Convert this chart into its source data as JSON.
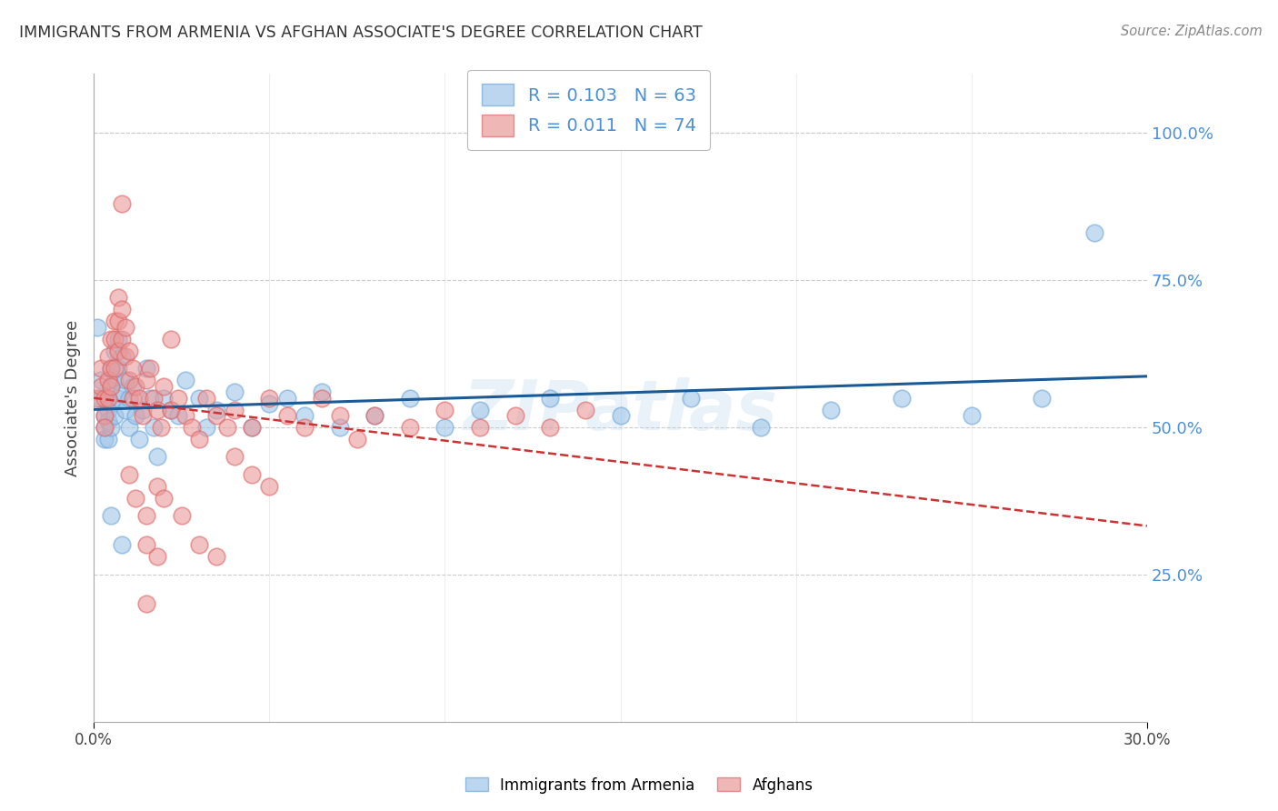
{
  "title": "IMMIGRANTS FROM ARMENIA VS AFGHAN ASSOCIATE'S DEGREE CORRELATION CHART",
  "source": "Source: ZipAtlas.com",
  "ylabel": "Associate's Degree",
  "ytick_labels": [
    "100.0%",
    "75.0%",
    "50.0%",
    "25.0%"
  ],
  "ytick_values": [
    1.0,
    0.75,
    0.5,
    0.25
  ],
  "xlim": [
    0.0,
    0.3
  ],
  "ylim": [
    0.0,
    1.1
  ],
  "blue_color": "#9fc5e8",
  "pink_color": "#ea9999",
  "blue_edge": "#6fa8dc",
  "pink_edge": "#e06666",
  "trend_blue": "#1a5a96",
  "trend_pink": "#cc3333",
  "watermark": "ZIPatlas",
  "background_color": "#ffffff",
  "grid_color": "#cccccc",
  "blue_scatter_x": [
    0.001,
    0.002,
    0.002,
    0.003,
    0.003,
    0.003,
    0.004,
    0.004,
    0.004,
    0.004,
    0.005,
    0.005,
    0.005,
    0.005,
    0.006,
    0.006,
    0.006,
    0.007,
    0.007,
    0.007,
    0.008,
    0.008,
    0.009,
    0.009,
    0.01,
    0.01,
    0.011,
    0.012,
    0.013,
    0.014,
    0.015,
    0.016,
    0.017,
    0.018,
    0.02,
    0.022,
    0.024,
    0.026,
    0.03,
    0.032,
    0.035,
    0.04,
    0.045,
    0.05,
    0.055,
    0.06,
    0.065,
    0.07,
    0.08,
    0.09,
    0.1,
    0.11,
    0.13,
    0.15,
    0.17,
    0.19,
    0.21,
    0.23,
    0.25,
    0.27,
    0.285,
    0.005,
    0.008
  ],
  "blue_scatter_y": [
    0.67,
    0.55,
    0.58,
    0.52,
    0.5,
    0.48,
    0.55,
    0.53,
    0.51,
    0.48,
    0.6,
    0.57,
    0.54,
    0.5,
    0.63,
    0.58,
    0.52,
    0.65,
    0.6,
    0.55,
    0.62,
    0.56,
    0.58,
    0.53,
    0.55,
    0.5,
    0.57,
    0.52,
    0.48,
    0.53,
    0.6,
    0.55,
    0.5,
    0.45,
    0.55,
    0.53,
    0.52,
    0.58,
    0.55,
    0.5,
    0.53,
    0.56,
    0.5,
    0.54,
    0.55,
    0.52,
    0.56,
    0.5,
    0.52,
    0.55,
    0.5,
    0.53,
    0.55,
    0.52,
    0.55,
    0.5,
    0.53,
    0.55,
    0.52,
    0.55,
    0.83,
    0.35,
    0.3
  ],
  "pink_scatter_x": [
    0.001,
    0.002,
    0.002,
    0.003,
    0.003,
    0.003,
    0.004,
    0.004,
    0.004,
    0.005,
    0.005,
    0.005,
    0.006,
    0.006,
    0.006,
    0.007,
    0.007,
    0.007,
    0.008,
    0.008,
    0.009,
    0.009,
    0.01,
    0.01,
    0.011,
    0.011,
    0.012,
    0.013,
    0.014,
    0.015,
    0.016,
    0.017,
    0.018,
    0.019,
    0.02,
    0.022,
    0.024,
    0.026,
    0.028,
    0.03,
    0.032,
    0.035,
    0.038,
    0.04,
    0.045,
    0.05,
    0.055,
    0.06,
    0.065,
    0.07,
    0.075,
    0.08,
    0.09,
    0.1,
    0.11,
    0.12,
    0.13,
    0.14,
    0.022,
    0.008,
    0.01,
    0.012,
    0.015,
    0.018,
    0.02,
    0.015,
    0.018,
    0.025,
    0.03,
    0.035,
    0.04,
    0.045,
    0.05,
    0.015
  ],
  "pink_scatter_y": [
    0.55,
    0.6,
    0.57,
    0.55,
    0.52,
    0.5,
    0.62,
    0.58,
    0.55,
    0.65,
    0.6,
    0.57,
    0.68,
    0.65,
    0.6,
    0.72,
    0.68,
    0.63,
    0.7,
    0.65,
    0.67,
    0.62,
    0.63,
    0.58,
    0.6,
    0.55,
    0.57,
    0.55,
    0.52,
    0.58,
    0.6,
    0.55,
    0.53,
    0.5,
    0.57,
    0.53,
    0.55,
    0.52,
    0.5,
    0.48,
    0.55,
    0.52,
    0.5,
    0.53,
    0.5,
    0.55,
    0.52,
    0.5,
    0.55,
    0.52,
    0.48,
    0.52,
    0.5,
    0.53,
    0.5,
    0.52,
    0.5,
    0.53,
    0.65,
    0.88,
    0.42,
    0.38,
    0.35,
    0.4,
    0.38,
    0.3,
    0.28,
    0.35,
    0.3,
    0.28,
    0.45,
    0.42,
    0.4,
    0.2
  ]
}
